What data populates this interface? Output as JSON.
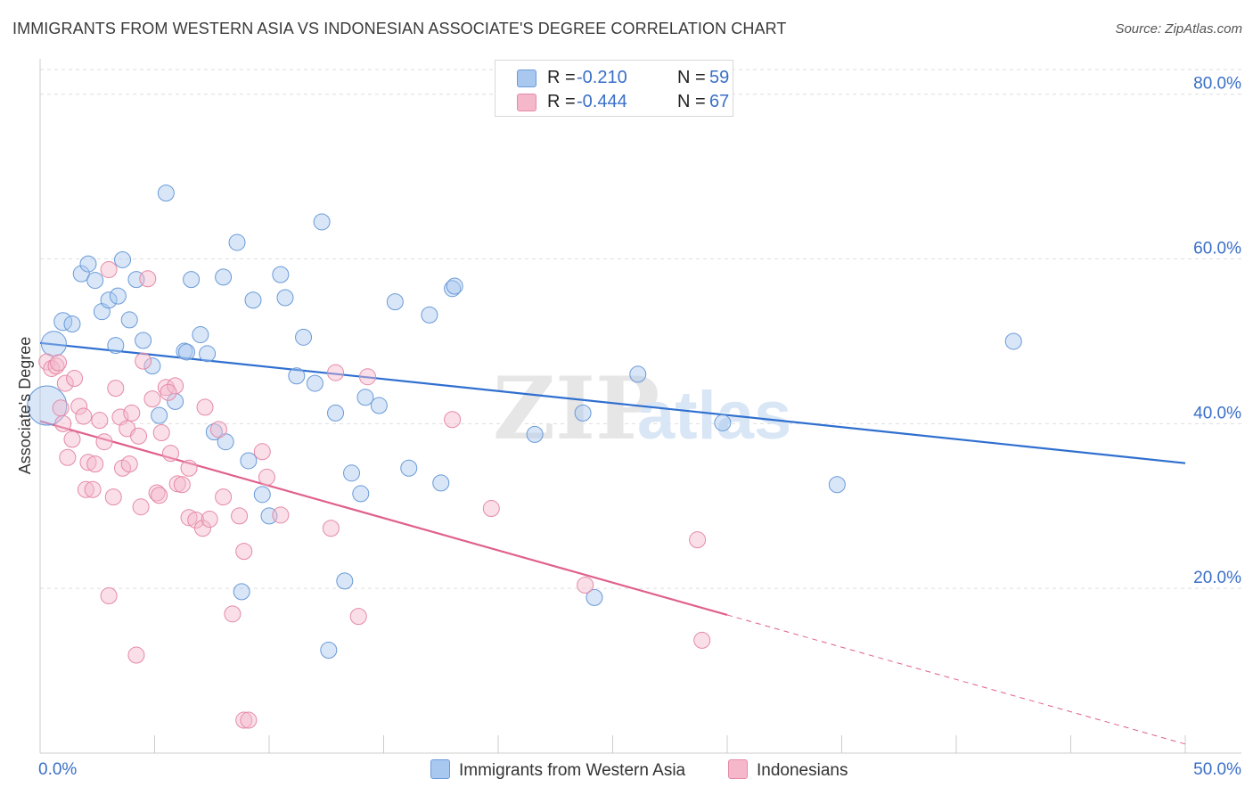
{
  "title": "IMMIGRANTS FROM WESTERN ASIA VS INDONESIAN ASSOCIATE'S DEGREE CORRELATION CHART",
  "source": "Source: ZipAtlas.com",
  "watermark": "ZIPatlas",
  "legend": {
    "rows": [
      {
        "r_label": "R =",
        "r_value": "-0.210",
        "n_label": "N =",
        "n_value": "59",
        "color": "#a8c8f0"
      },
      {
        "r_label": "R =",
        "r_value": "-0.444",
        "n_label": "N =",
        "n_value": "67",
        "color": "#f5b8cb"
      }
    ]
  },
  "bottom_legend": [
    {
      "label": "Immigrants from Western Asia",
      "color": "#a8c8f0"
    },
    {
      "label": "Indonesians",
      "color": "#f5b8cb"
    }
  ],
  "chart_data": {
    "type": "scatter",
    "title": "IMMIGRANTS FROM WESTERN ASIA VS INDONESIAN ASSOCIATE'S DEGREE CORRELATION CHART",
    "ylabel": "Associate's Degree",
    "xlabel": "",
    "xlim": [
      0,
      50
    ],
    "ylim": [
      0,
      83
    ],
    "x_tick_labels": [
      "0.0%",
      "50.0%"
    ],
    "y_ticks": [
      20,
      40,
      60,
      80
    ],
    "y_tick_labels": [
      "20.0%",
      "40.0%",
      "60.0%",
      "80.0%"
    ],
    "grid": true,
    "series": [
      {
        "name": "Immigrants from Western Asia",
        "color": "#a8c8f0",
        "stroke": "#6a9ad8",
        "trend": {
          "x": [
            0,
            50
          ],
          "y": [
            49.8,
            35.2
          ],
          "color": "#2f6fd0",
          "solid_until": 50
        },
        "points": [
          [
            0.3,
            42.2,
            22
          ],
          [
            0.6,
            49.7,
            14
          ],
          [
            1.0,
            52.4,
            10
          ],
          [
            1.4,
            52.1,
            9
          ],
          [
            1.8,
            58.2,
            9
          ],
          [
            2.1,
            59.4,
            9
          ],
          [
            2.4,
            57.4,
            9
          ],
          [
            2.7,
            53.6,
            9
          ],
          [
            3.0,
            55.0,
            9
          ],
          [
            3.3,
            49.5,
            9
          ],
          [
            3.6,
            59.9,
            9
          ],
          [
            3.9,
            52.6,
            9
          ],
          [
            4.2,
            57.5,
            9
          ],
          [
            4.5,
            50.1,
            9
          ],
          [
            4.9,
            47.0,
            9
          ],
          [
            5.2,
            41.0,
            9
          ],
          [
            5.5,
            68.0,
            9
          ],
          [
            5.9,
            42.7,
            9
          ],
          [
            6.3,
            48.8,
            9
          ],
          [
            6.6,
            57.5,
            9
          ],
          [
            7.0,
            50.8,
            9
          ],
          [
            7.3,
            48.5,
            9
          ],
          [
            7.6,
            39.0,
            9
          ],
          [
            8.0,
            57.8,
            9
          ],
          [
            8.1,
            37.8,
            9
          ],
          [
            8.6,
            62.0,
            9
          ],
          [
            8.8,
            19.6,
            9
          ],
          [
            9.1,
            35.5,
            9
          ],
          [
            9.7,
            31.4,
            9
          ],
          [
            10.0,
            28.8,
            9
          ],
          [
            10.5,
            58.1,
            9
          ],
          [
            10.7,
            55.3,
            9
          ],
          [
            11.2,
            45.8,
            9
          ],
          [
            11.5,
            50.5,
            9
          ],
          [
            12.0,
            44.9,
            9
          ],
          [
            12.3,
            64.5,
            9
          ],
          [
            12.6,
            12.5,
            9
          ],
          [
            12.9,
            41.3,
            9
          ],
          [
            13.3,
            20.9,
            9
          ],
          [
            13.6,
            34.0,
            9
          ],
          [
            14.0,
            31.5,
            9
          ],
          [
            14.2,
            43.2,
            9
          ],
          [
            14.8,
            42.2,
            9
          ],
          [
            15.5,
            54.8,
            9
          ],
          [
            16.1,
            34.6,
            9
          ],
          [
            17.0,
            53.2,
            9
          ],
          [
            17.5,
            32.8,
            9
          ],
          [
            18.0,
            56.4,
            9
          ],
          [
            18.1,
            56.7,
            9
          ],
          [
            21.6,
            38.7,
            9
          ],
          [
            23.7,
            41.3,
            9
          ],
          [
            24.2,
            18.9,
            9
          ],
          [
            26.1,
            46.0,
            9
          ],
          [
            29.8,
            40.1,
            9
          ],
          [
            34.8,
            32.6,
            9
          ],
          [
            42.5,
            50.0,
            9
          ],
          [
            3.4,
            55.5,
            9
          ],
          [
            6.4,
            48.7,
            9
          ],
          [
            9.3,
            55.0,
            9
          ]
        ]
      },
      {
        "name": "Indonesians",
        "color": "#f5b8cb",
        "stroke": "#e58aa6",
        "trend": {
          "x": [
            0,
            50
          ],
          "y": [
            40.3,
            1.1
          ],
          "color": "#e0608c",
          "solid_until": 30
        },
        "points": [
          [
            0.3,
            47.5,
            9
          ],
          [
            0.5,
            46.7,
            9
          ],
          [
            0.7,
            47.0,
            9
          ],
          [
            0.8,
            47.4,
            9
          ],
          [
            0.9,
            41.9,
            9
          ],
          [
            1.0,
            40.0,
            9
          ],
          [
            1.1,
            44.9,
            9
          ],
          [
            1.2,
            35.9,
            9
          ],
          [
            1.4,
            38.1,
            9
          ],
          [
            1.5,
            45.5,
            9
          ],
          [
            1.7,
            42.1,
            9
          ],
          [
            1.9,
            40.9,
            9
          ],
          [
            2.0,
            32.0,
            9
          ],
          [
            2.1,
            35.3,
            9
          ],
          [
            2.3,
            32.0,
            9
          ],
          [
            2.4,
            35.1,
            9
          ],
          [
            2.6,
            40.4,
            9
          ],
          [
            2.8,
            37.8,
            9
          ],
          [
            3.0,
            58.7,
            9
          ],
          [
            3.0,
            19.1,
            9
          ],
          [
            3.2,
            31.1,
            9
          ],
          [
            3.3,
            44.3,
            9
          ],
          [
            3.5,
            40.8,
            9
          ],
          [
            3.6,
            34.6,
            9
          ],
          [
            3.8,
            39.4,
            9
          ],
          [
            3.9,
            35.1,
            9
          ],
          [
            4.0,
            41.3,
            9
          ],
          [
            4.2,
            11.9,
            9
          ],
          [
            4.3,
            38.5,
            9
          ],
          [
            4.4,
            29.9,
            9
          ],
          [
            4.5,
            47.6,
            9
          ],
          [
            4.7,
            57.6,
            9
          ],
          [
            4.9,
            43.0,
            9
          ],
          [
            5.1,
            31.6,
            9
          ],
          [
            5.2,
            31.3,
            9
          ],
          [
            5.3,
            38.9,
            9
          ],
          [
            5.5,
            44.4,
            9
          ],
          [
            5.7,
            36.4,
            9
          ],
          [
            5.9,
            44.6,
            9
          ],
          [
            6.0,
            32.7,
            9
          ],
          [
            6.2,
            32.6,
            9
          ],
          [
            6.5,
            28.6,
            9
          ],
          [
            6.5,
            34.6,
            9
          ],
          [
            6.8,
            28.3,
            9
          ],
          [
            7.1,
            27.3,
            9
          ],
          [
            7.2,
            42.0,
            9
          ],
          [
            7.4,
            28.4,
            9
          ],
          [
            7.8,
            39.3,
            9
          ],
          [
            8.0,
            31.1,
            9
          ],
          [
            8.4,
            16.9,
            9
          ],
          [
            8.7,
            28.8,
            9
          ],
          [
            8.9,
            24.5,
            9
          ],
          [
            8.9,
            4.0,
            9
          ],
          [
            9.1,
            4.0,
            9
          ],
          [
            9.7,
            36.6,
            9
          ],
          [
            9.9,
            33.5,
            9
          ],
          [
            10.5,
            28.9,
            9
          ],
          [
            12.7,
            27.3,
            9
          ],
          [
            12.9,
            46.2,
            9
          ],
          [
            13.9,
            16.6,
            9
          ],
          [
            14.3,
            45.7,
            9
          ],
          [
            18.0,
            40.5,
            9
          ],
          [
            19.7,
            29.7,
            9
          ],
          [
            23.8,
            20.4,
            9
          ],
          [
            28.7,
            25.9,
            9
          ],
          [
            28.9,
            13.7,
            9
          ],
          [
            5.6,
            43.8,
            9
          ]
        ]
      }
    ]
  }
}
